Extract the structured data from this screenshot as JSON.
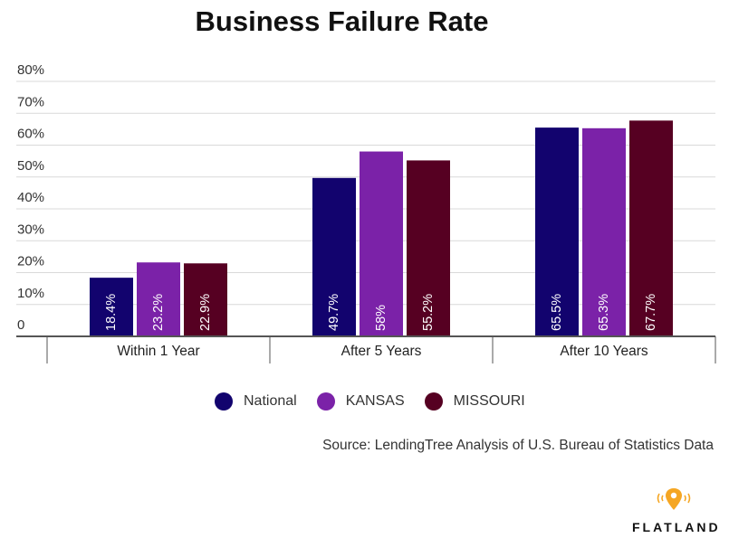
{
  "title": "Business Failure Rate",
  "source": "Source: LendingTree Analysis of U.S. Bureau of Statistics Data",
  "brand": "FLATLAND",
  "colors": {
    "National": "#12036e",
    "KANSAS": "#7b22a8",
    "MISSOURI": "#560022",
    "brand_pin": "#f5a623"
  },
  "chart_data": {
    "type": "bar",
    "title": "Business Failure Rate",
    "categories": [
      "Within 1 Year",
      "After 5 Years",
      "After 10 Years"
    ],
    "series": [
      {
        "name": "National",
        "values": [
          18.4,
          49.7,
          65.5
        ],
        "labels": [
          "18.4%",
          "49.7%",
          "65.5%"
        ]
      },
      {
        "name": "KANSAS",
        "values": [
          23.2,
          58,
          65.3
        ],
        "labels": [
          "23.2%",
          "58%",
          "65.3%"
        ]
      },
      {
        "name": "MISSOURI",
        "values": [
          22.9,
          55.2,
          67.7
        ],
        "labels": [
          "22.9%",
          "55.2%",
          "67.7%"
        ]
      }
    ],
    "y_ticks": [
      "0",
      "10%",
      "20%",
      "30%",
      "40%",
      "50%",
      "60%",
      "70%",
      "80%"
    ],
    "ylim": [
      0,
      80
    ],
    "grid": true,
    "legend_position": "bottom"
  }
}
